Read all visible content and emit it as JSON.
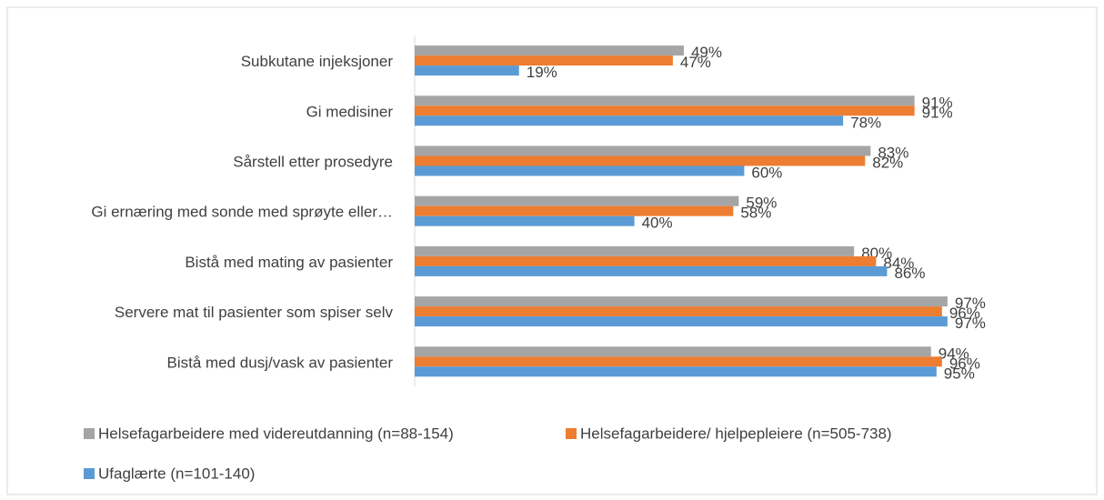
{
  "chart_data": {
    "type": "bar",
    "orientation": "horizontal",
    "categories": [
      "Subkutane injeksjoner",
      "Gi medisiner",
      "Sårstell etter prosedyre",
      "Gi ernæring med sonde med sprøyte eller…",
      "Bistå med mating av pasienter",
      "Servere mat til pasienter som spiser selv",
      "Bistå med dusj/vask av pasienter"
    ],
    "series": [
      {
        "name": "Helsefagarbeidere med videreutdanning (n=88-154)",
        "color": "#a5a5a5",
        "values": [
          49,
          91,
          83,
          59,
          80,
          97,
          94
        ],
        "value_labels": [
          "49%",
          "91%",
          "83%",
          "59%",
          "80%",
          "97%",
          "94%"
        ]
      },
      {
        "name": "Helsefagarbeidere/ hjelpepleiere (n=505-738)",
        "color": "#ed7d31",
        "values": [
          47,
          91,
          82,
          58,
          84,
          96,
          96
        ],
        "value_labels": [
          "47%",
          "91%",
          "82%",
          "58%",
          "84%",
          "96%",
          "96%"
        ]
      },
      {
        "name": "Ufaglærte (n=101-140)",
        "color": "#5b9bd5",
        "values": [
          19,
          78,
          60,
          40,
          86,
          97,
          95
        ],
        "value_labels": [
          "19%",
          "78%",
          "60%",
          "40%",
          "86%",
          "97%",
          "95%"
        ]
      }
    ],
    "xlim": [
      0,
      100
    ],
    "legend": "bottom"
  }
}
